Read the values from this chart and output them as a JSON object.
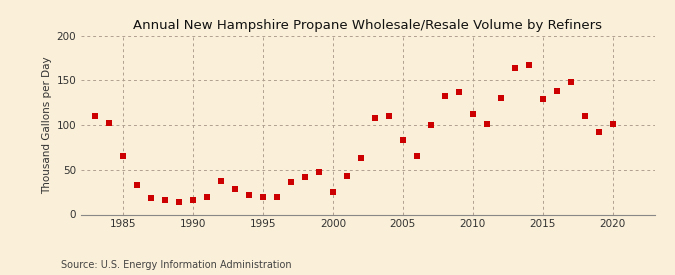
{
  "title": "Annual New Hampshire Propane Wholesale/Resale Volume by Refiners",
  "ylabel": "Thousand Gallons per Day",
  "source": "Source: U.S. Energy Information Administration",
  "background_color": "#faefd8",
  "plot_bg_color": "#faefd8",
  "marker_color": "#cc0000",
  "marker": "s",
  "marker_size": 5,
  "xlim": [
    1982,
    2023
  ],
  "ylim": [
    0,
    200
  ],
  "yticks": [
    0,
    50,
    100,
    150,
    200
  ],
  "xticks": [
    1985,
    1990,
    1995,
    2000,
    2005,
    2010,
    2015,
    2020
  ],
  "years": [
    1983,
    1984,
    1985,
    1986,
    1987,
    1988,
    1989,
    1990,
    1991,
    1992,
    1993,
    1994,
    1995,
    1996,
    1997,
    1998,
    1999,
    2000,
    2001,
    2002,
    2003,
    2004,
    2005,
    2006,
    2007,
    2008,
    2009,
    2010,
    2011,
    2012,
    2013,
    2014,
    2015,
    2016,
    2017,
    2018,
    2019,
    2020
  ],
  "values": [
    110,
    102,
    66,
    33,
    18,
    16,
    14,
    16,
    20,
    38,
    28,
    22,
    20,
    20,
    36,
    42,
    47,
    25,
    43,
    63,
    108,
    110,
    83,
    65,
    100,
    133,
    137,
    113,
    101,
    130,
    164,
    167,
    129,
    138,
    148,
    110,
    92,
    101
  ]
}
